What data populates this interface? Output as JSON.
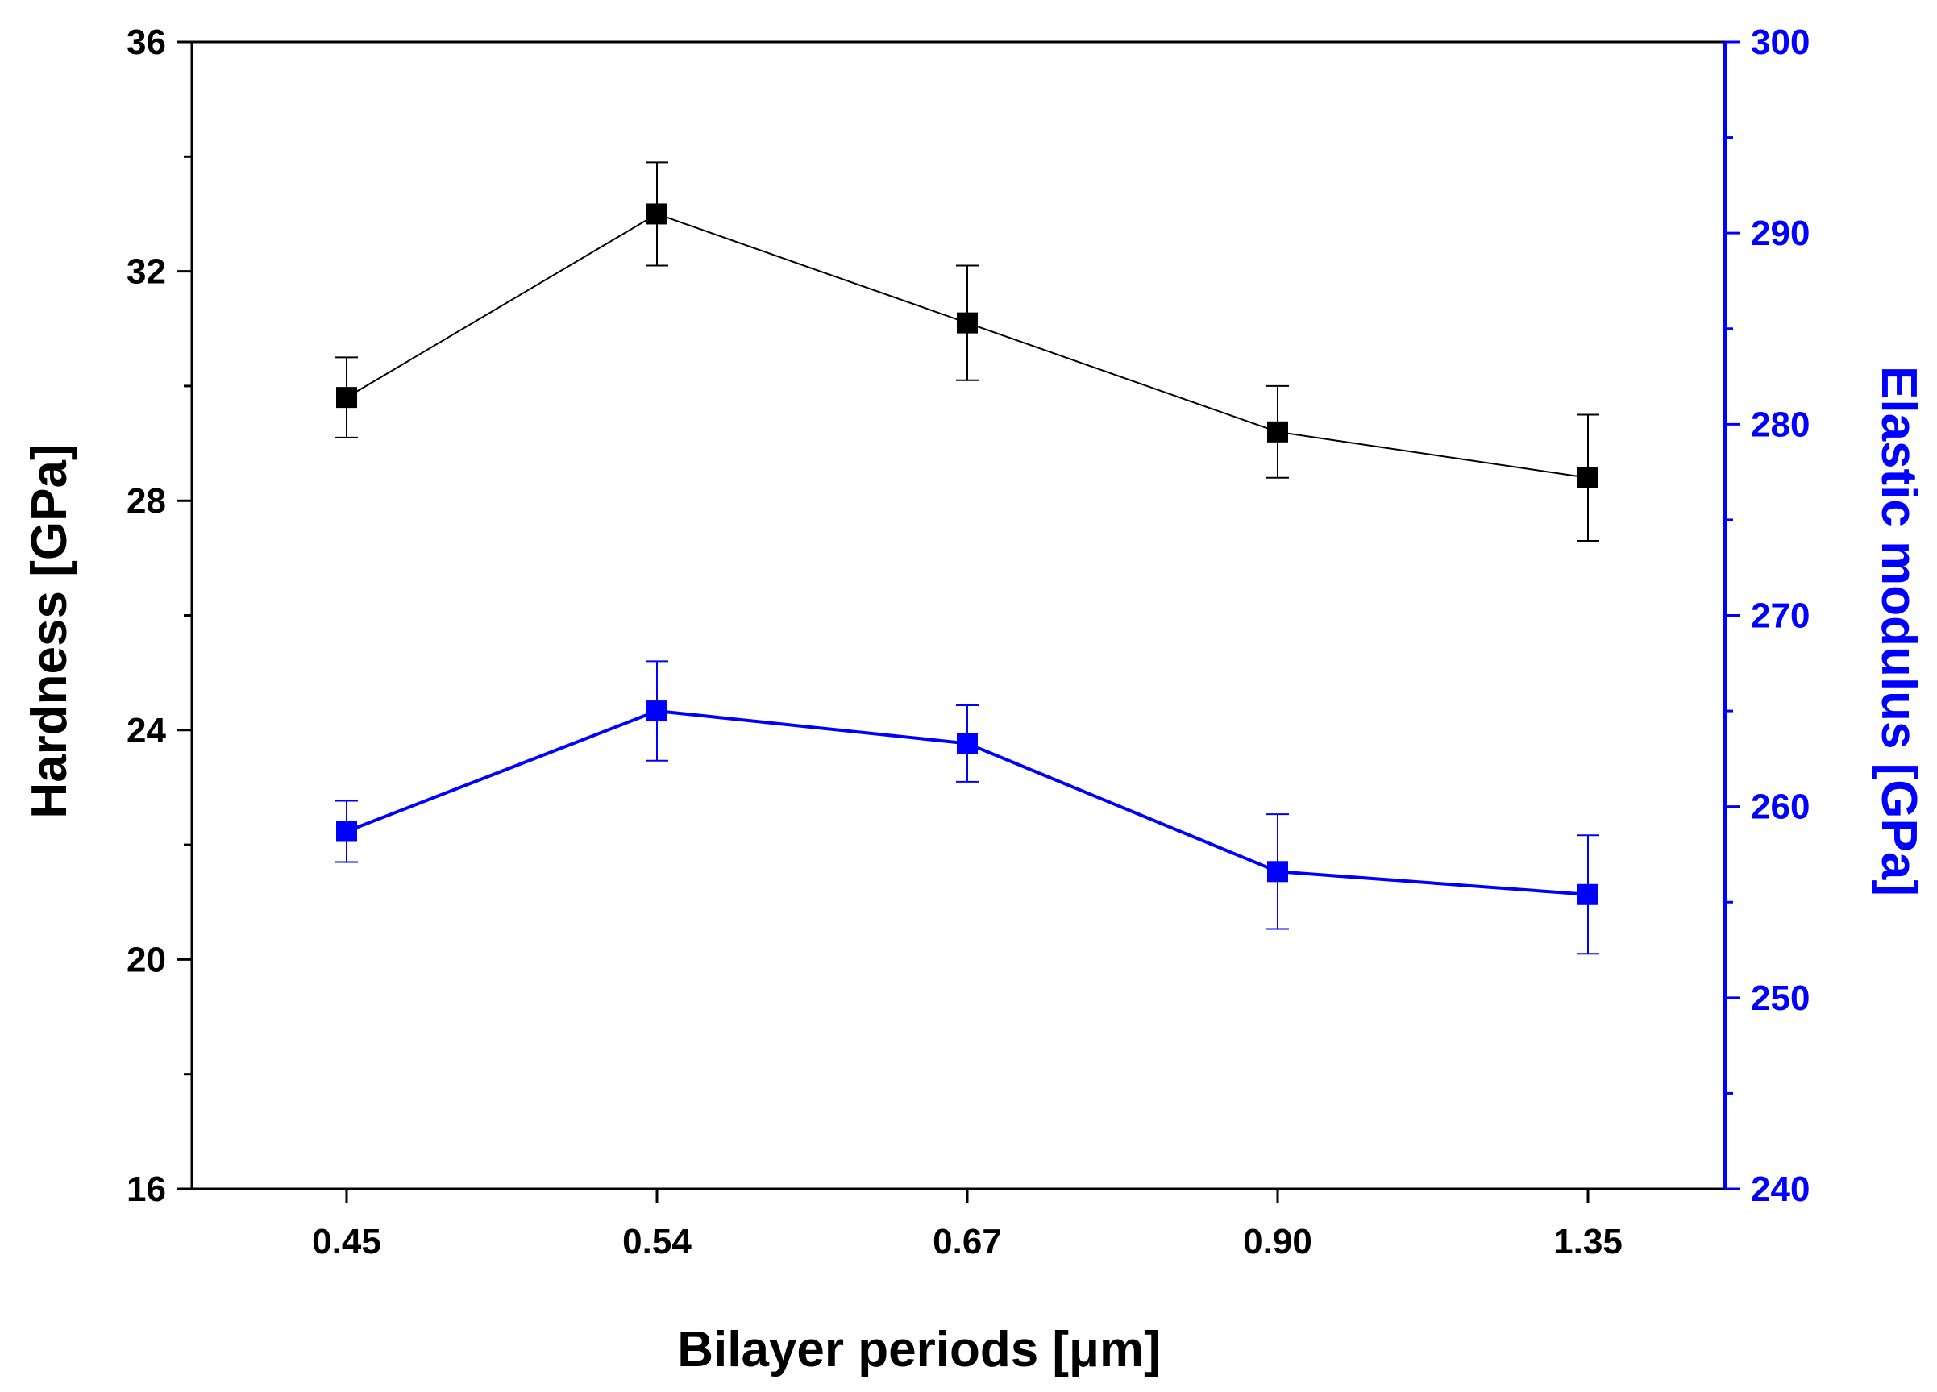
{
  "chart_data": {
    "type": "line",
    "xlabel": "Bilayer periods [μm]",
    "ylabel": "Hardness [GPa]",
    "y2label": "Elastic modulus [GPa]",
    "categories": [
      "0.45",
      "0.54",
      "0.67",
      "0.90",
      "1.35"
    ],
    "ylim": [
      16,
      36
    ],
    "y2lim": [
      240,
      300
    ],
    "yticks": [
      "16",
      "20",
      "24",
      "28",
      "32",
      "36"
    ],
    "y2ticks": [
      "240",
      "250",
      "260",
      "270",
      "280",
      "290",
      "300"
    ],
    "series": [
      {
        "name": "Hardness",
        "axis": "left",
        "color": "#000000",
        "values": [
          29.8,
          33.0,
          31.1,
          29.2,
          28.4
        ],
        "errors": [
          0.7,
          0.9,
          1.0,
          0.8,
          1.1
        ]
      },
      {
        "name": "Elastic modulus",
        "axis": "right",
        "color": "#0000ff",
        "values": [
          258.7,
          265.0,
          263.3,
          256.6,
          255.4
        ],
        "errors": [
          1.6,
          2.6,
          2.0,
          3.0,
          3.1
        ]
      }
    ]
  }
}
